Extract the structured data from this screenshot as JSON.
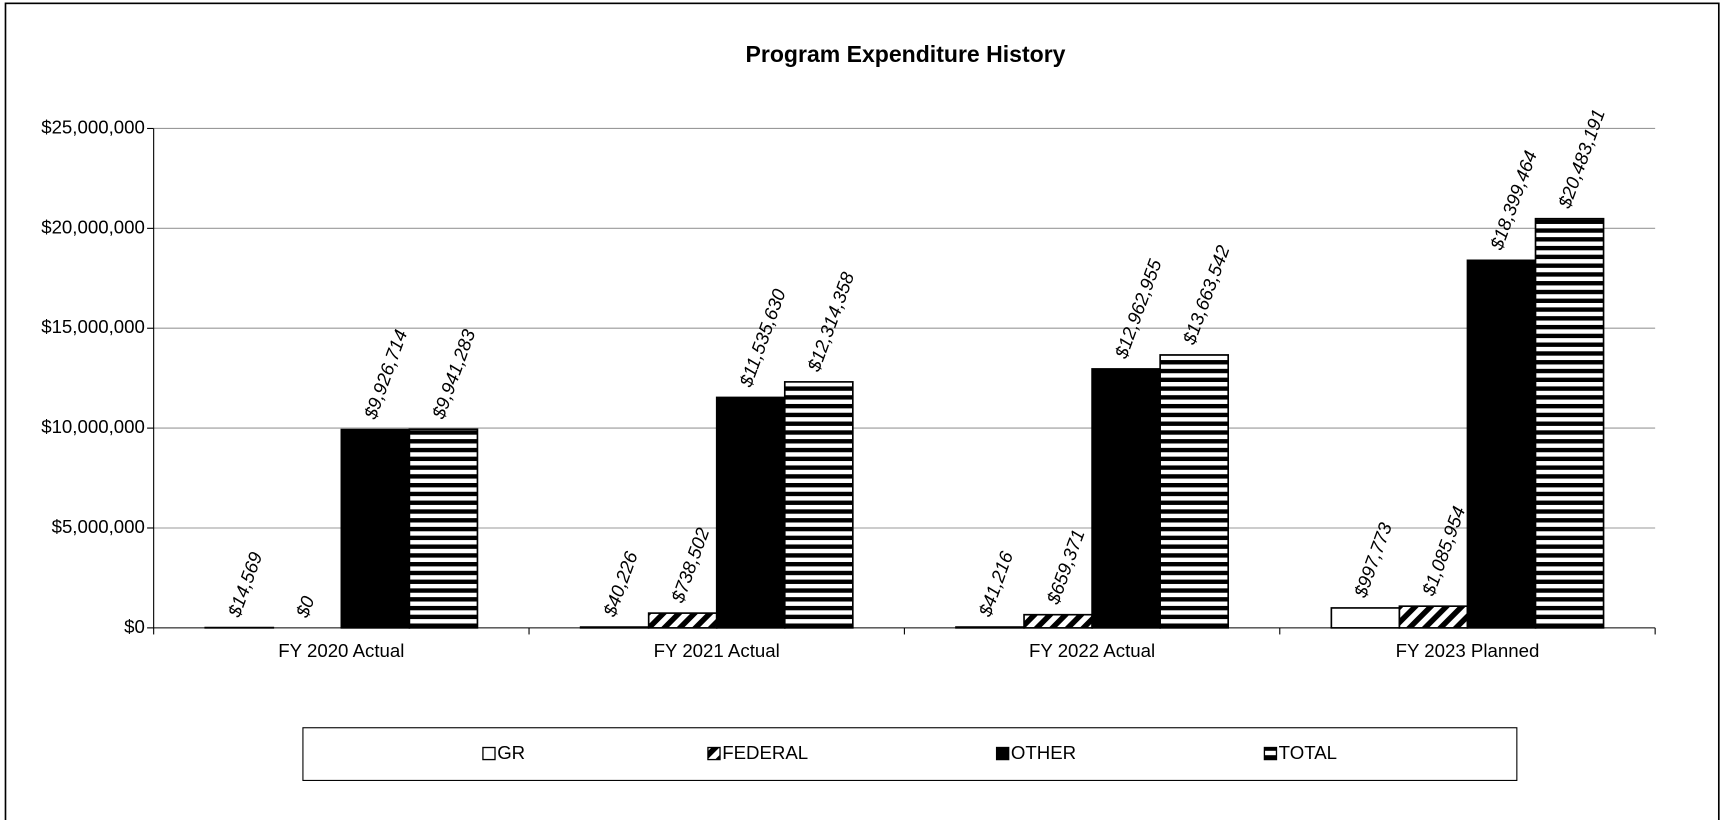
{
  "chart_data": {
    "type": "bar",
    "title": "Program Expenditure History",
    "categories": [
      "FY 2020 Actual",
      "FY 2021 Actual",
      "FY 2022 Actual",
      "FY 2023 Planned"
    ],
    "series": [
      {
        "name": "GR",
        "color": "#ffffff",
        "pattern": "solid",
        "values": [
          14569,
          40226,
          41216,
          997773
        ],
        "value_labels": [
          "$14,569",
          "$40,226",
          "$41,216",
          "$997,773"
        ]
      },
      {
        "name": "FEDERAL",
        "color": "#000000",
        "pattern": "diagonal",
        "values": [
          0,
          738502,
          659371,
          1085954
        ],
        "value_labels": [
          "$0",
          "$738,502",
          "$659,371",
          "$1,085,954"
        ]
      },
      {
        "name": "OTHER",
        "color": "#000000",
        "pattern": "solid",
        "values": [
          9926714,
          11535630,
          12962955,
          18399464
        ],
        "value_labels": [
          "$9,926,714",
          "$11,535,630",
          "$12,962,955",
          "$18,399,464"
        ]
      },
      {
        "name": "TOTAL",
        "color": "#000000",
        "pattern": "horizontal",
        "values": [
          9941283,
          12314358,
          13663542,
          20483191
        ],
        "value_labels": [
          "$9,941,283",
          "$12,314,358",
          "$13,663,542",
          "$20,483,191"
        ]
      }
    ],
    "ylim": [
      0,
      25000000
    ],
    "yticks": [
      {
        "value": 0,
        "label": "$0"
      },
      {
        "value": 5000000,
        "label": "$5,000,000"
      },
      {
        "value": 10000000,
        "label": "$10,000,000"
      },
      {
        "value": 15000000,
        "label": "$15,000,000"
      },
      {
        "value": 20000000,
        "label": "$20,000,000"
      },
      {
        "value": 25000000,
        "label": "$25,000,000"
      }
    ],
    "grid": true,
    "legend": "bottom"
  }
}
